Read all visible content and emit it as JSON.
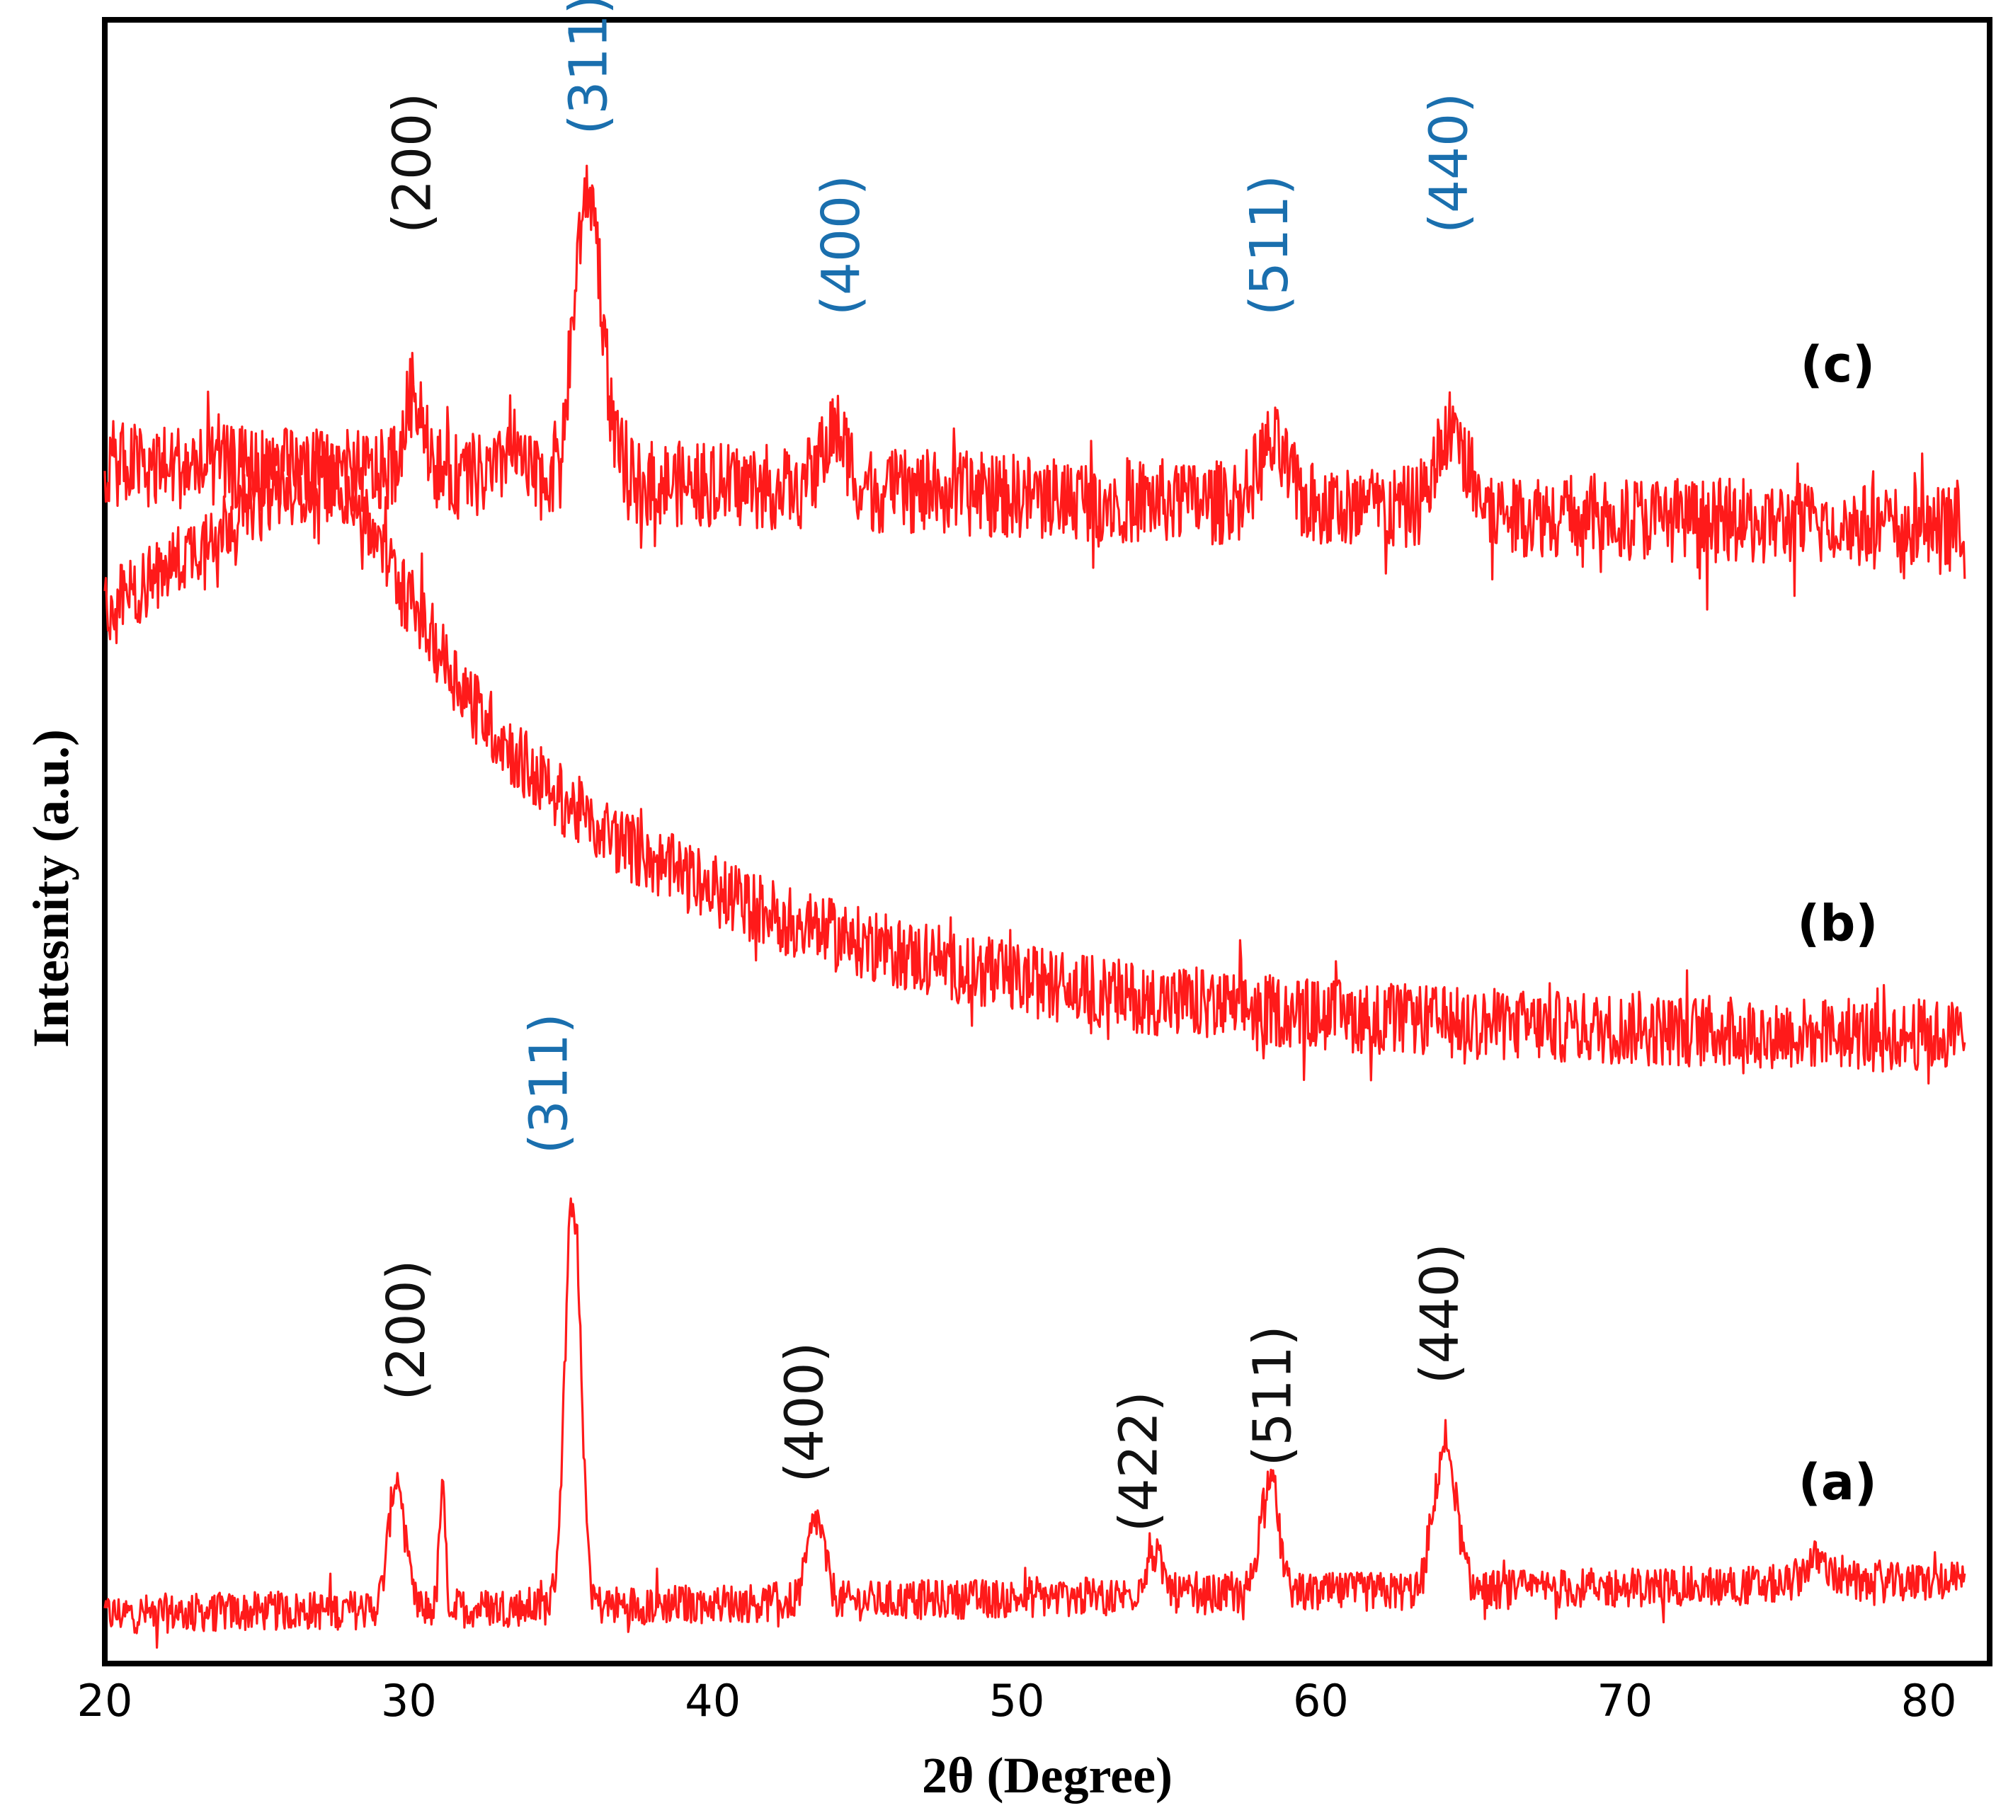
{
  "colors": {
    "trace": "#ff1a1a",
    "peak_label_black": "#111111",
    "peak_label_blue": "#1a6fae",
    "frame": "#000000",
    "background": "#ffffff"
  },
  "chart_data": {
    "type": "line",
    "title": "",
    "xlabel": "2θ (Degree)",
    "ylabel": "Intesnity (a.u.)",
    "xlim": [
      20,
      82
    ],
    "xticks": [
      20,
      30,
      40,
      50,
      60,
      70,
      80
    ],
    "xtick_labels": [
      "20",
      "30",
      "40",
      "50",
      "60",
      "70",
      "80"
    ],
    "ylim": [
      0,
      100
    ],
    "grid": false,
    "series": [
      {
        "name": "(a)",
        "label": "(a)",
        "label_at": [
          77,
          10
        ],
        "x_range": [
          20,
          81.2
        ],
        "baseline": [
          3,
          5
        ],
        "noise": 1.2,
        "trend": "flat",
        "peaks": [
          {
            "x": 29.6,
            "height": 8,
            "width": 0.26
          },
          {
            "x": 31.1,
            "height": 7,
            "width": 0.1
          },
          {
            "x": 35.4,
            "height": 25,
            "width": 0.26
          },
          {
            "x": 43.4,
            "height": 5,
            "width": 0.28
          },
          {
            "x": 54.5,
            "height": 2.5,
            "width": 0.3
          },
          {
            "x": 58.3,
            "height": 7,
            "width": 0.3
          },
          {
            "x": 64.1,
            "height": 9,
            "width": 0.35
          },
          {
            "x": 76.3,
            "height": 1.5,
            "width": 0.4
          }
        ],
        "peak_labels": [
          {
            "text": "(200)",
            "x": 30.5,
            "y": 16,
            "color": "black"
          },
          {
            "text": "(311)",
            "x": 35.2,
            "y": 31,
            "color": "blue"
          },
          {
            "text": "(400)",
            "x": 43.6,
            "y": 11,
            "color": "black"
          },
          {
            "text": "(422)",
            "x": 54.6,
            "y": 8,
            "color": "black"
          },
          {
            "text": "(511)",
            "x": 59.0,
            "y": 12,
            "color": "black"
          },
          {
            "text": "(440)",
            "x": 64.5,
            "y": 17,
            "color": "black"
          }
        ]
      },
      {
        "name": "(b)",
        "label": "(b)",
        "label_at": [
          77,
          44
        ],
        "x_range": [
          20,
          81.2
        ],
        "baseline": [
          65,
          38
        ],
        "noise": 2.2,
        "trend": "broad-hump",
        "peaks": [
          {
            "x": 26.5,
            "height": 7,
            "width": 3.5
          }
        ],
        "peak_labels": []
      },
      {
        "name": "(c)",
        "label": "(c)",
        "label_at": [
          77,
          78
        ],
        "x_range": [
          20,
          81.2
        ],
        "baseline": [
          73,
          69
        ],
        "noise": 2.6,
        "trend": "flat",
        "peaks": [
          {
            "x": 30.2,
            "height": 5,
            "width": 0.35
          },
          {
            "x": 33.4,
            "height": 3,
            "width": 0.2
          },
          {
            "x": 35.9,
            "height": 18,
            "width": 0.45
          },
          {
            "x": 44.0,
            "height": 3.5,
            "width": 0.45
          },
          {
            "x": 58.4,
            "height": 3.5,
            "width": 0.5
          },
          {
            "x": 64.3,
            "height": 5,
            "width": 0.5
          }
        ],
        "peak_labels": [
          {
            "text": "(200)",
            "x": 30.7,
            "y": 87,
            "color": "black"
          },
          {
            "text": "(311)",
            "x": 36.5,
            "y": 93,
            "color": "blue"
          },
          {
            "text": "(400)",
            "x": 44.8,
            "y": 82,
            "color": "blue"
          },
          {
            "text": "(511)",
            "x": 58.9,
            "y": 82,
            "color": "blue"
          },
          {
            "text": "(440)",
            "x": 64.8,
            "y": 87,
            "color": "blue"
          }
        ]
      }
    ]
  }
}
